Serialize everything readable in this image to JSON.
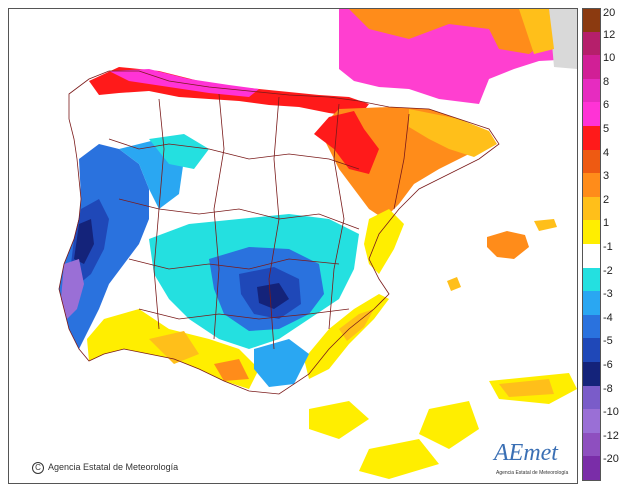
{
  "credit": {
    "symbol": "C",
    "text": "Agencia Estatal de Meteorología"
  },
  "logo": {
    "main": "AEmet",
    "sub": "Agencia Estatal de Meteorología"
  },
  "legend": {
    "steps": [
      {
        "label": "20",
        "color": "#8b3a10"
      },
      {
        "label": "12",
        "color": "#b51f6b"
      },
      {
        "label": "10",
        "color": "#d11f96"
      },
      {
        "label": "8",
        "color": "#e62cc0"
      },
      {
        "label": "6",
        "color": "#ff33d6"
      },
      {
        "label": "5",
        "color": "#ff1a1a"
      },
      {
        "label": "4",
        "color": "#ee5a12"
      },
      {
        "label": "3",
        "color": "#ff8c1a"
      },
      {
        "label": "2",
        "color": "#ffbf1a"
      },
      {
        "label": "1",
        "color": "#ffee00"
      },
      {
        "label": "-1",
        "color": "#ffffff"
      },
      {
        "label": "-2",
        "color": "#24e0e0"
      },
      {
        "label": "-3",
        "color": "#2aa7f2"
      },
      {
        "label": "-4",
        "color": "#2a72de"
      },
      {
        "label": "-5",
        "color": "#1f48b8"
      },
      {
        "label": "-6",
        "color": "#14237a"
      },
      {
        "label": "-8",
        "color": "#7a5cc9"
      },
      {
        "label": "-10",
        "color": "#9a6fd6"
      },
      {
        "label": "-12",
        "color": "#8e4fbf"
      },
      {
        "label": "-20",
        "color": "#7a2da8"
      }
    ]
  }
}
